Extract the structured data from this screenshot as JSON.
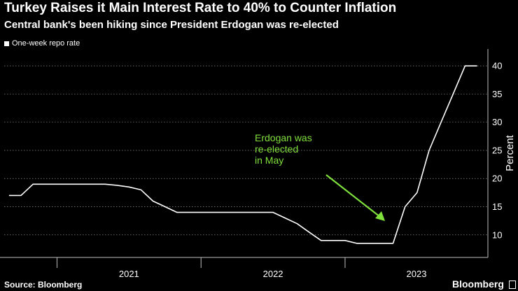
{
  "chart_data": {
    "type": "line",
    "title": "Turkey Raises it Main Interest Rate to 40% to Counter Inflation",
    "subtitle": "Central bank's been hiking since President Erdogan was re-elected",
    "ylabel": "Percent",
    "xlabel": "",
    "ylim": [
      6,
      43
    ],
    "y_ticks": [
      "10",
      "15",
      "20",
      "25",
      "30",
      "35",
      "40"
    ],
    "x_labels": [
      "2021",
      "2022",
      "2023"
    ],
    "grid": true,
    "legend_position": "top-left",
    "line_color": "#ffffff",
    "annotation_color": "#7fe03c",
    "series": [
      {
        "name": "One-week repo rate",
        "x": [
          "2020-09",
          "2020-10",
          "2020-11",
          "2020-12",
          "2021-01",
          "2021-02",
          "2021-03",
          "2021-04",
          "2021-05",
          "2021-06",
          "2021-07",
          "2021-08",
          "2021-09",
          "2021-10",
          "2021-11",
          "2021-12",
          "2022-01",
          "2022-02",
          "2022-03",
          "2022-04",
          "2022-05",
          "2022-06",
          "2022-07",
          "2022-08",
          "2022-09",
          "2022-10",
          "2022-11",
          "2022-12",
          "2023-01",
          "2023-02",
          "2023-03",
          "2023-04",
          "2023-05",
          "2023-06",
          "2023-07",
          "2023-08",
          "2023-09",
          "2023-10",
          "2023-11",
          "2023-12"
        ],
        "values": [
          17,
          17,
          19,
          19,
          19,
          19,
          19,
          19,
          19,
          18.8,
          18.5,
          18,
          16,
          15,
          14,
          14,
          14,
          14,
          14,
          14,
          14,
          14,
          14,
          13,
          12,
          10.5,
          9,
          9,
          9,
          8.5,
          8.5,
          8.5,
          8.5,
          15,
          17.5,
          25,
          30,
          35,
          40,
          40
        ]
      }
    ],
    "annotation": {
      "lines": [
        "Erdogan was",
        "re-elected",
        "in May"
      ]
    }
  },
  "footer": {
    "source": "Source: Bloomberg",
    "brand": "Bloomberg"
  }
}
